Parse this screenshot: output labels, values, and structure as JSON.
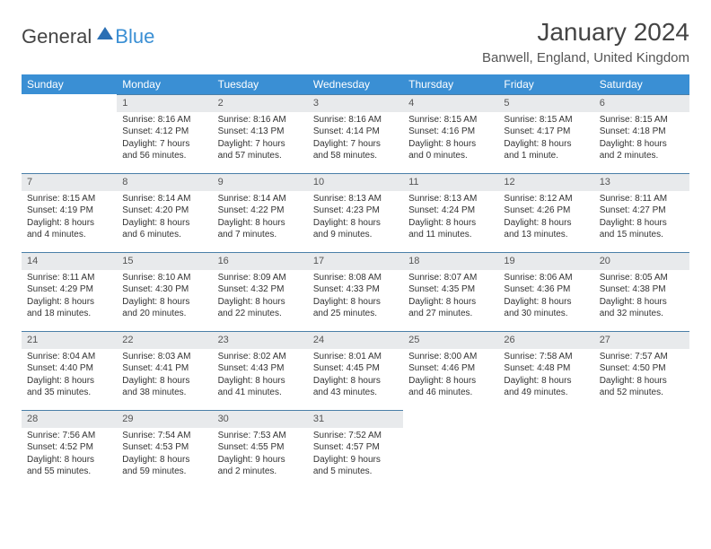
{
  "logo": {
    "part1": "General",
    "part2": "Blue"
  },
  "header": {
    "month_title": "January 2024",
    "location": "Banwell, England, United Kingdom"
  },
  "colors": {
    "header_bg": "#3a8fd4",
    "daynum_bg": "#e8eaec",
    "accent_border": "#4a7fa8"
  },
  "weekdays": [
    "Sunday",
    "Monday",
    "Tuesday",
    "Wednesday",
    "Thursday",
    "Friday",
    "Saturday"
  ],
  "weeks": [
    [
      null,
      {
        "n": "1",
        "sunrise": "Sunrise: 8:16 AM",
        "sunset": "Sunset: 4:12 PM",
        "day1": "Daylight: 7 hours",
        "day2": "and 56 minutes."
      },
      {
        "n": "2",
        "sunrise": "Sunrise: 8:16 AM",
        "sunset": "Sunset: 4:13 PM",
        "day1": "Daylight: 7 hours",
        "day2": "and 57 minutes."
      },
      {
        "n": "3",
        "sunrise": "Sunrise: 8:16 AM",
        "sunset": "Sunset: 4:14 PM",
        "day1": "Daylight: 7 hours",
        "day2": "and 58 minutes."
      },
      {
        "n": "4",
        "sunrise": "Sunrise: 8:15 AM",
        "sunset": "Sunset: 4:16 PM",
        "day1": "Daylight: 8 hours",
        "day2": "and 0 minutes."
      },
      {
        "n": "5",
        "sunrise": "Sunrise: 8:15 AM",
        "sunset": "Sunset: 4:17 PM",
        "day1": "Daylight: 8 hours",
        "day2": "and 1 minute."
      },
      {
        "n": "6",
        "sunrise": "Sunrise: 8:15 AM",
        "sunset": "Sunset: 4:18 PM",
        "day1": "Daylight: 8 hours",
        "day2": "and 2 minutes."
      }
    ],
    [
      {
        "n": "7",
        "sunrise": "Sunrise: 8:15 AM",
        "sunset": "Sunset: 4:19 PM",
        "day1": "Daylight: 8 hours",
        "day2": "and 4 minutes."
      },
      {
        "n": "8",
        "sunrise": "Sunrise: 8:14 AM",
        "sunset": "Sunset: 4:20 PM",
        "day1": "Daylight: 8 hours",
        "day2": "and 6 minutes."
      },
      {
        "n": "9",
        "sunrise": "Sunrise: 8:14 AM",
        "sunset": "Sunset: 4:22 PM",
        "day1": "Daylight: 8 hours",
        "day2": "and 7 minutes."
      },
      {
        "n": "10",
        "sunrise": "Sunrise: 8:13 AM",
        "sunset": "Sunset: 4:23 PM",
        "day1": "Daylight: 8 hours",
        "day2": "and 9 minutes."
      },
      {
        "n": "11",
        "sunrise": "Sunrise: 8:13 AM",
        "sunset": "Sunset: 4:24 PM",
        "day1": "Daylight: 8 hours",
        "day2": "and 11 minutes."
      },
      {
        "n": "12",
        "sunrise": "Sunrise: 8:12 AM",
        "sunset": "Sunset: 4:26 PM",
        "day1": "Daylight: 8 hours",
        "day2": "and 13 minutes."
      },
      {
        "n": "13",
        "sunrise": "Sunrise: 8:11 AM",
        "sunset": "Sunset: 4:27 PM",
        "day1": "Daylight: 8 hours",
        "day2": "and 15 minutes."
      }
    ],
    [
      {
        "n": "14",
        "sunrise": "Sunrise: 8:11 AM",
        "sunset": "Sunset: 4:29 PM",
        "day1": "Daylight: 8 hours",
        "day2": "and 18 minutes."
      },
      {
        "n": "15",
        "sunrise": "Sunrise: 8:10 AM",
        "sunset": "Sunset: 4:30 PM",
        "day1": "Daylight: 8 hours",
        "day2": "and 20 minutes."
      },
      {
        "n": "16",
        "sunrise": "Sunrise: 8:09 AM",
        "sunset": "Sunset: 4:32 PM",
        "day1": "Daylight: 8 hours",
        "day2": "and 22 minutes."
      },
      {
        "n": "17",
        "sunrise": "Sunrise: 8:08 AM",
        "sunset": "Sunset: 4:33 PM",
        "day1": "Daylight: 8 hours",
        "day2": "and 25 minutes."
      },
      {
        "n": "18",
        "sunrise": "Sunrise: 8:07 AM",
        "sunset": "Sunset: 4:35 PM",
        "day1": "Daylight: 8 hours",
        "day2": "and 27 minutes."
      },
      {
        "n": "19",
        "sunrise": "Sunrise: 8:06 AM",
        "sunset": "Sunset: 4:36 PM",
        "day1": "Daylight: 8 hours",
        "day2": "and 30 minutes."
      },
      {
        "n": "20",
        "sunrise": "Sunrise: 8:05 AM",
        "sunset": "Sunset: 4:38 PM",
        "day1": "Daylight: 8 hours",
        "day2": "and 32 minutes."
      }
    ],
    [
      {
        "n": "21",
        "sunrise": "Sunrise: 8:04 AM",
        "sunset": "Sunset: 4:40 PM",
        "day1": "Daylight: 8 hours",
        "day2": "and 35 minutes."
      },
      {
        "n": "22",
        "sunrise": "Sunrise: 8:03 AM",
        "sunset": "Sunset: 4:41 PM",
        "day1": "Daylight: 8 hours",
        "day2": "and 38 minutes."
      },
      {
        "n": "23",
        "sunrise": "Sunrise: 8:02 AM",
        "sunset": "Sunset: 4:43 PM",
        "day1": "Daylight: 8 hours",
        "day2": "and 41 minutes."
      },
      {
        "n": "24",
        "sunrise": "Sunrise: 8:01 AM",
        "sunset": "Sunset: 4:45 PM",
        "day1": "Daylight: 8 hours",
        "day2": "and 43 minutes."
      },
      {
        "n": "25",
        "sunrise": "Sunrise: 8:00 AM",
        "sunset": "Sunset: 4:46 PM",
        "day1": "Daylight: 8 hours",
        "day2": "and 46 minutes."
      },
      {
        "n": "26",
        "sunrise": "Sunrise: 7:58 AM",
        "sunset": "Sunset: 4:48 PM",
        "day1": "Daylight: 8 hours",
        "day2": "and 49 minutes."
      },
      {
        "n": "27",
        "sunrise": "Sunrise: 7:57 AM",
        "sunset": "Sunset: 4:50 PM",
        "day1": "Daylight: 8 hours",
        "day2": "and 52 minutes."
      }
    ],
    [
      {
        "n": "28",
        "sunrise": "Sunrise: 7:56 AM",
        "sunset": "Sunset: 4:52 PM",
        "day1": "Daylight: 8 hours",
        "day2": "and 55 minutes."
      },
      {
        "n": "29",
        "sunrise": "Sunrise: 7:54 AM",
        "sunset": "Sunset: 4:53 PM",
        "day1": "Daylight: 8 hours",
        "day2": "and 59 minutes."
      },
      {
        "n": "30",
        "sunrise": "Sunrise: 7:53 AM",
        "sunset": "Sunset: 4:55 PM",
        "day1": "Daylight: 9 hours",
        "day2": "and 2 minutes."
      },
      {
        "n": "31",
        "sunrise": "Sunrise: 7:52 AM",
        "sunset": "Sunset: 4:57 PM",
        "day1": "Daylight: 9 hours",
        "day2": "and 5 minutes."
      },
      null,
      null,
      null
    ]
  ]
}
